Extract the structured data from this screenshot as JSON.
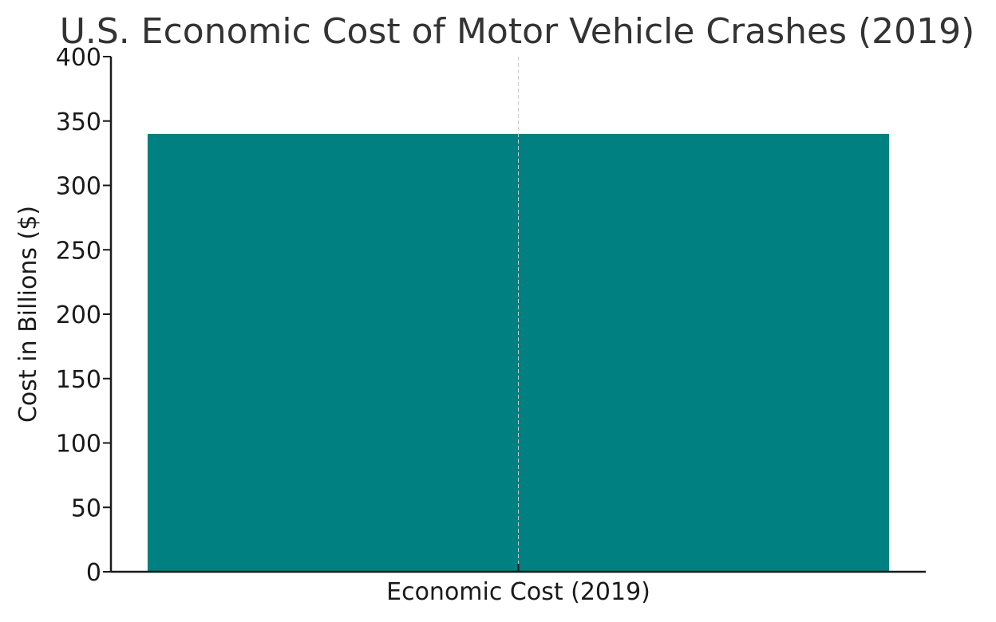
{
  "chart_data": {
    "type": "bar",
    "title": "U.S. Economic Cost of Motor Vehicle Crashes (2019)",
    "xlabel": "",
    "ylabel": "Cost in Billions ($)",
    "categories": [
      "Economic Cost (2019)"
    ],
    "values": [
      340
    ],
    "ylim": [
      0,
      400
    ],
    "yticks": [
      "0",
      "50",
      "100",
      "150",
      "200",
      "250",
      "300",
      "350",
      "400"
    ],
    "grid": "vertical dashed at category",
    "legend": "none",
    "colors": {
      "bar": "#008080",
      "axis": "#1a1a1a",
      "grid": "#cccccc",
      "title": "#333333"
    }
  }
}
